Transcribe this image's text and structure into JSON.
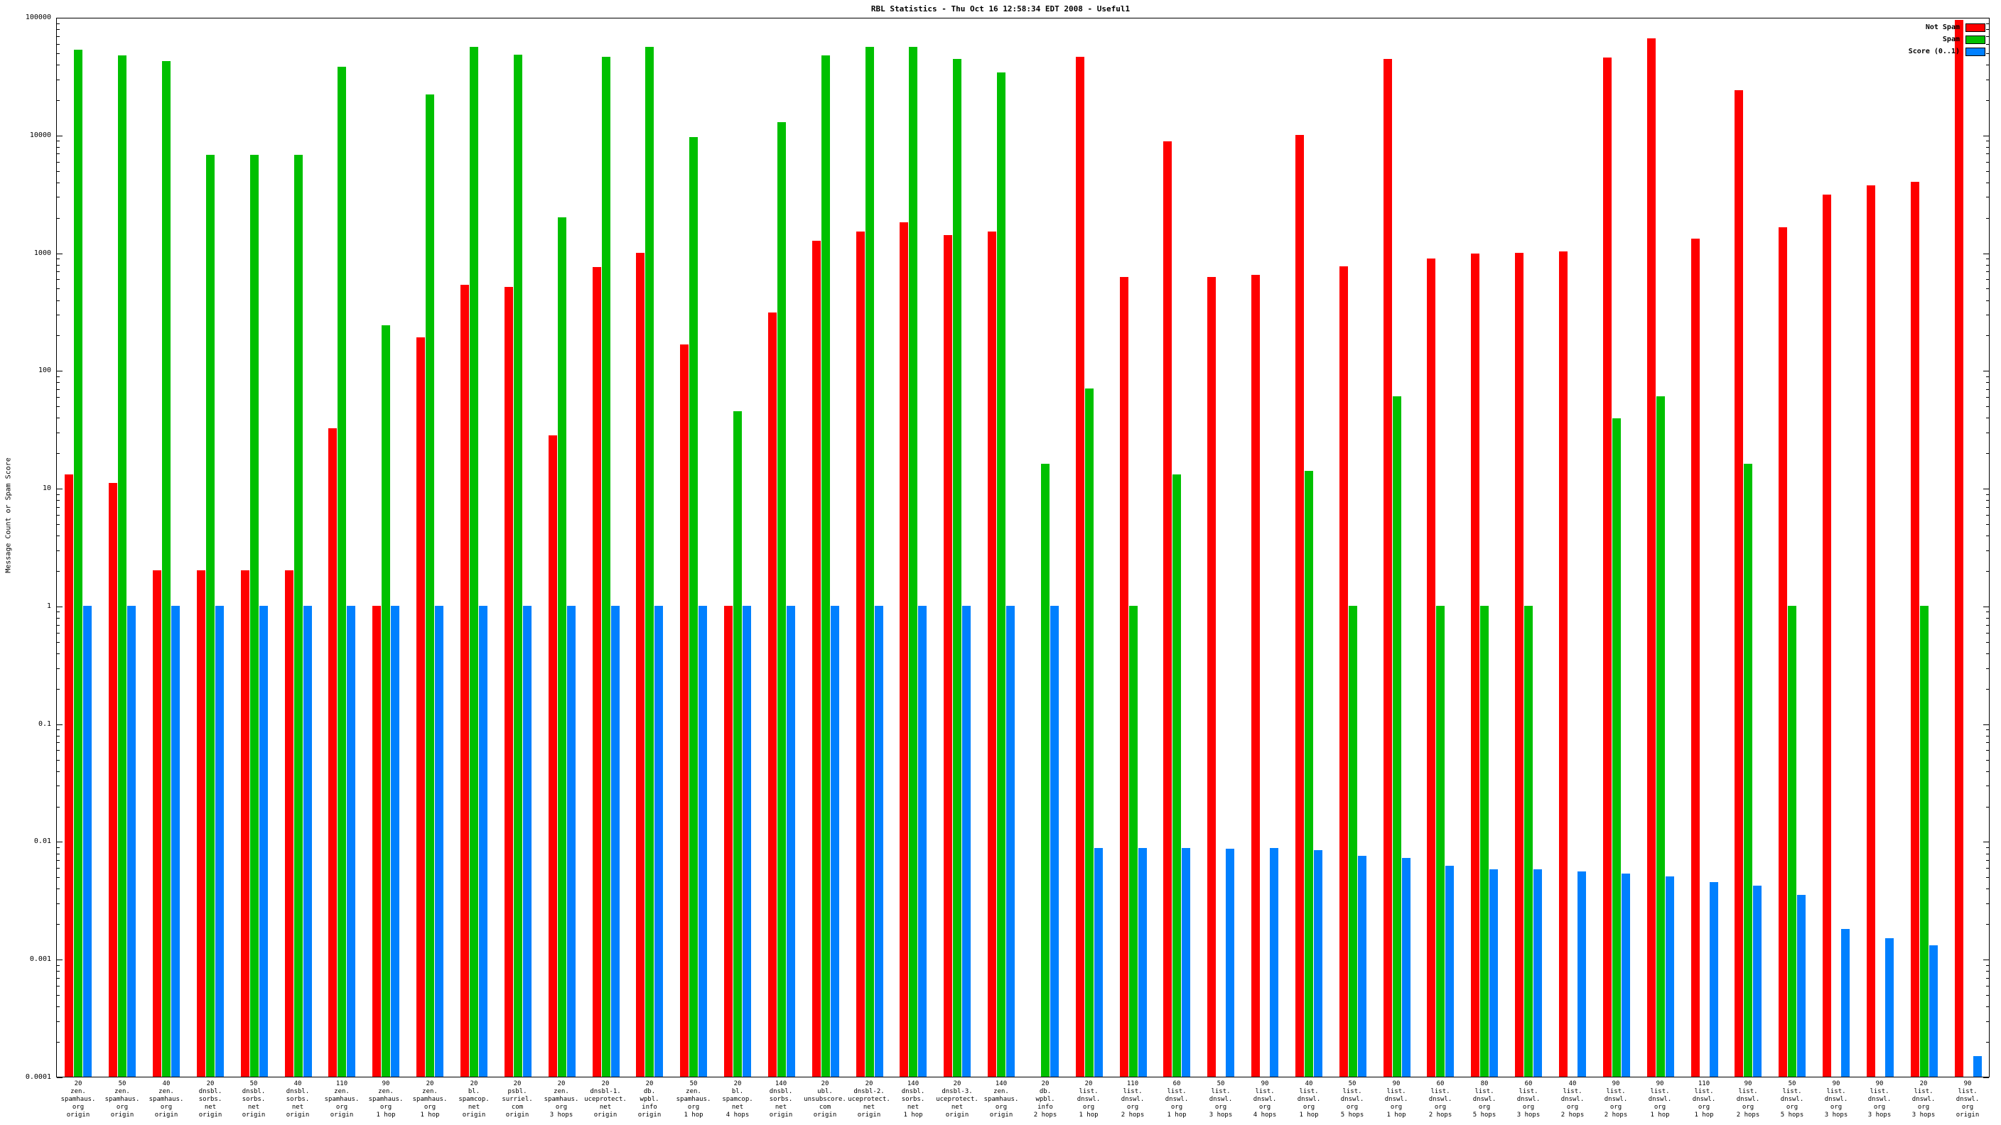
{
  "title": "RBL Statistics - Thu Oct 16 12:58:34 EDT 2008 - Useful1",
  "ylabel": "Message Count or Spam Score",
  "legend": [
    {
      "label": "Not Spam",
      "color": "#ff0000"
    },
    {
      "label": "Spam",
      "color": "#00c000"
    },
    {
      "label": "Score (0..1)",
      "color": "#0080ff"
    }
  ],
  "chart_data": {
    "type": "bar",
    "scale": "log",
    "ylim": [
      0.0001,
      100000
    ],
    "yticks": [
      "100000",
      "10000",
      "1000",
      "100",
      "10",
      "1",
      "0.1",
      "0.01",
      "0.001",
      "0.0001"
    ],
    "grid": false,
    "legend_position": "top-right",
    "series_names": [
      "Not Spam",
      "Spam",
      "Score (0..1)"
    ],
    "colors": {
      "not_spam": "#ff0000",
      "spam": "#00c000",
      "score": "#0080ff"
    },
    "groups": [
      {
        "label": [
          "20",
          "zen.",
          "spamhaus.",
          "org",
          "origin"
        ],
        "not_spam": 13,
        "spam": 53000,
        "score": 1
      },
      {
        "label": [
          "50",
          "zen.",
          "spamhaus.",
          "org",
          "origin"
        ],
        "not_spam": 11,
        "spam": 47000,
        "score": 1
      },
      {
        "label": [
          "40",
          "zen.",
          "spamhaus.",
          "org",
          "origin"
        ],
        "not_spam": 2,
        "spam": 42000,
        "score": 1
      },
      {
        "label": [
          "20",
          "dnsbl.",
          "sorbs.",
          "net",
          "origin"
        ],
        "not_spam": 2,
        "spam": 6800,
        "score": 1
      },
      {
        "label": [
          "50",
          "dnsbl.",
          "sorbs.",
          "net",
          "origin"
        ],
        "not_spam": 2,
        "spam": 6800,
        "score": 1
      },
      {
        "label": [
          "40",
          "dnsbl.",
          "sorbs.",
          "net",
          "origin"
        ],
        "not_spam": 2,
        "spam": 6800,
        "score": 1
      },
      {
        "label": [
          "110",
          "zen.",
          "spamhaus.",
          "org",
          "origin"
        ],
        "not_spam": 32,
        "spam": 38000,
        "score": 1
      },
      {
        "label": [
          "90",
          "zen.",
          "spamhaus.",
          "org",
          "1 hop"
        ],
        "not_spam": 1,
        "spam": 240,
        "score": 1
      },
      {
        "label": [
          "20",
          "zen.",
          "spamhaus.",
          "org",
          "1 hop"
        ],
        "not_spam": 190,
        "spam": 22000,
        "score": 1
      },
      {
        "label": [
          "20",
          "bl.",
          "spamcop.",
          "net",
          "origin"
        ],
        "not_spam": 530,
        "spam": 56000,
        "score": 1
      },
      {
        "label": [
          "20",
          "psbl.",
          "surriel.",
          "com",
          "origin"
        ],
        "not_spam": 510,
        "spam": 48000,
        "score": 1
      },
      {
        "label": [
          "20",
          "zen.",
          "spamhaus.",
          "org",
          "3 hops"
        ],
        "not_spam": 28,
        "spam": 2000,
        "score": 1
      },
      {
        "label": [
          "20",
          "dnsbl-1.",
          "uceprotect.",
          "net",
          "origin"
        ],
        "not_spam": 750,
        "spam": 46000,
        "score": 1
      },
      {
        "label": [
          "20",
          "db.",
          "wpbl.",
          "info",
          "origin"
        ],
        "not_spam": 1000,
        "spam": 56000,
        "score": 1
      },
      {
        "label": [
          "50",
          "zen.",
          "spamhaus.",
          "org",
          "1 hop"
        ],
        "not_spam": 165,
        "spam": 9600,
        "score": 1
      },
      {
        "label": [
          "20",
          "bl.",
          "spamcop.",
          "net",
          "4 hops"
        ],
        "not_spam": 1,
        "spam": 45,
        "score": 1
      },
      {
        "label": [
          "140",
          "dnsbl.",
          "sorbs.",
          "net",
          "origin"
        ],
        "not_spam": 310,
        "spam": 12800,
        "score": 1
      },
      {
        "label": [
          "20",
          "ubl.",
          "unsubscore.",
          "com",
          "origin"
        ],
        "not_spam": 1250,
        "spam": 47000,
        "score": 1
      },
      {
        "label": [
          "20",
          "dnsbl-2.",
          "uceprotect.",
          "net",
          "origin"
        ],
        "not_spam": 1500,
        "spam": 56000,
        "score": 1
      },
      {
        "label": [
          "140",
          "dnsbl.",
          "sorbs.",
          "net",
          "1 hop"
        ],
        "not_spam": 1800,
        "spam": 56000,
        "score": 1
      },
      {
        "label": [
          "20",
          "dnsbl-3.",
          "uceprotect.",
          "net",
          "origin"
        ],
        "not_spam": 1400,
        "spam": 44000,
        "score": 1
      },
      {
        "label": [
          "140",
          "zen.",
          "spamhaus.",
          "org",
          "origin"
        ],
        "not_spam": 1500,
        "spam": 34000,
        "score": 1
      },
      {
        "label": [
          "20",
          "db.",
          "wpbl.",
          "info",
          "2 hops"
        ],
        "not_spam": null,
        "spam": 16,
        "score": 1
      },
      {
        "label": [
          "20",
          "list.",
          "dnswl.",
          "org",
          "1 hop"
        ],
        "not_spam": 46000,
        "spam": 70,
        "score": 0.0088
      },
      {
        "label": [
          "110",
          "list.",
          "dnswl.",
          "org",
          "2 hops"
        ],
        "not_spam": 620,
        "spam": 1,
        "score": 0.0088
      },
      {
        "label": [
          "60",
          "list.",
          "dnswl.",
          "org",
          "1 hop"
        ],
        "not_spam": 8800,
        "spam": 13,
        "score": 0.0088
      },
      {
        "label": [
          "50",
          "list.",
          "dnswl.",
          "org",
          "3 hops"
        ],
        "not_spam": 620,
        "spam": null,
        "score": 0.0086
      },
      {
        "label": [
          "90",
          "list.",
          "dnswl.",
          "org",
          "4 hops"
        ],
        "not_spam": 650,
        "spam": null,
        "score": 0.0088
      },
      {
        "label": [
          "40",
          "list.",
          "dnswl.",
          "org",
          "1 hop"
        ],
        "not_spam": 10000,
        "spam": 14,
        "score": 0.0084
      },
      {
        "label": [
          "50",
          "list.",
          "dnswl.",
          "org",
          "5 hops"
        ],
        "not_spam": 760,
        "spam": 1,
        "score": 0.0075
      },
      {
        "label": [
          "90",
          "list.",
          "dnswl.",
          "org",
          "1 hop"
        ],
        "not_spam": 44000,
        "spam": 60,
        "score": 0.0072
      },
      {
        "label": [
          "60",
          "list.",
          "dnswl.",
          "org",
          "2 hops"
        ],
        "not_spam": 890,
        "spam": 1,
        "score": 0.0062
      },
      {
        "label": [
          "80",
          "list.",
          "dnswl.",
          "org",
          "5 hops"
        ],
        "not_spam": 980,
        "spam": 1,
        "score": 0.0058
      },
      {
        "label": [
          "60",
          "list.",
          "dnswl.",
          "org",
          "3 hops"
        ],
        "not_spam": 1000,
        "spam": 1,
        "score": 0.0058
      },
      {
        "label": [
          "40",
          "list.",
          "dnswl.",
          "org",
          "2 hops"
        ],
        "not_spam": 1020,
        "spam": null,
        "score": 0.0055
      },
      {
        "label": [
          "90",
          "list.",
          "dnswl.",
          "org",
          "2 hops"
        ],
        "not_spam": 45000,
        "spam": 39,
        "score": 0.0053
      },
      {
        "label": [
          "90",
          "list.",
          "dnswl.",
          "org",
          "1 hop"
        ],
        "not_spam": 66000,
        "spam": 60,
        "score": 0.005
      },
      {
        "label": [
          "110",
          "list.",
          "dnswl.",
          "org",
          "1 hop"
        ],
        "not_spam": 1320,
        "spam": null,
        "score": 0.0045
      },
      {
        "label": [
          "90",
          "list.",
          "dnswl.",
          "org",
          "2 hops"
        ],
        "not_spam": 24000,
        "spam": 16,
        "score": 0.0042
      },
      {
        "label": [
          "50",
          "list.",
          "dnswl.",
          "org",
          "5 hops"
        ],
        "not_spam": 1650,
        "spam": 1,
        "score": 0.0035
      },
      {
        "label": [
          "90",
          "list.",
          "dnswl.",
          "org",
          "3 hops"
        ],
        "not_spam": 3100,
        "spam": null,
        "score": 0.0018
      },
      {
        "label": [
          "90",
          "list.",
          "dnswl.",
          "org",
          "3 hops"
        ],
        "not_spam": 3700,
        "spam": null,
        "score": 0.0015
      },
      {
        "label": [
          "20",
          "list.",
          "dnswl.",
          "org",
          "3 hops"
        ],
        "not_spam": 4000,
        "spam": 1,
        "score": 0.0013
      },
      {
        "label": [
          "90",
          "list.",
          "dnswl.",
          "org",
          "origin"
        ],
        "not_spam": 95000,
        "spam": null,
        "score": 0.00015
      }
    ]
  }
}
